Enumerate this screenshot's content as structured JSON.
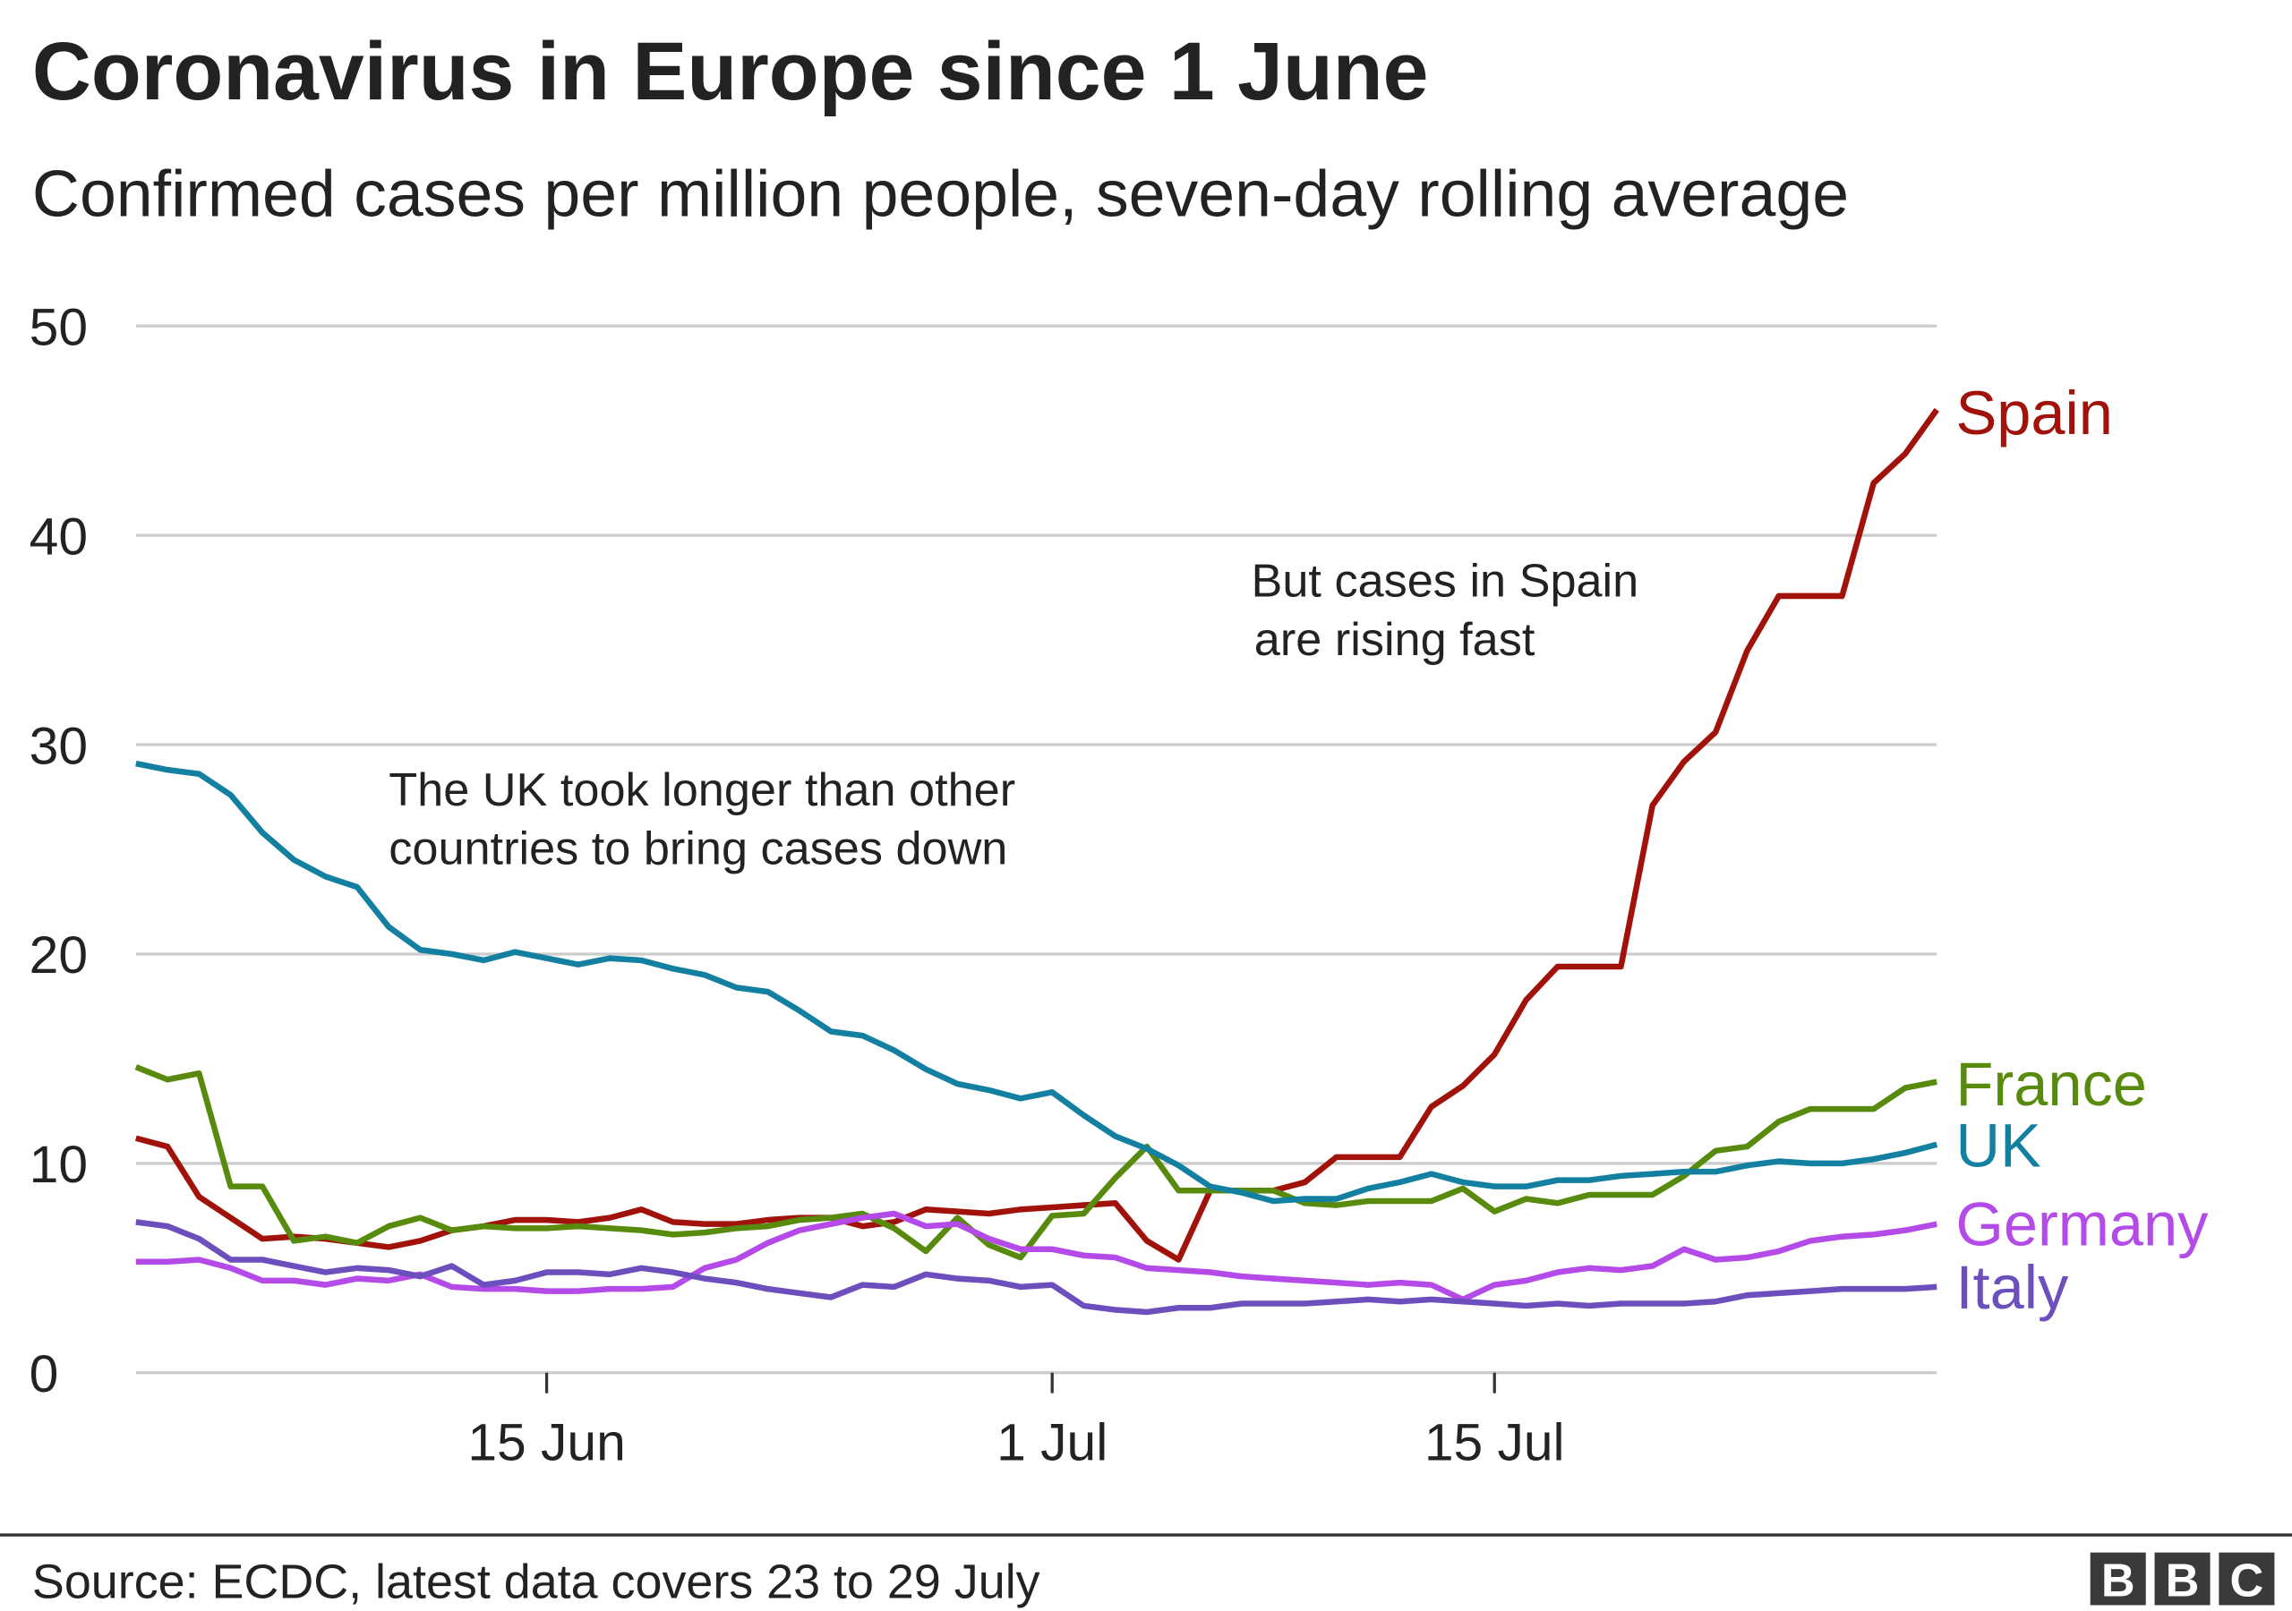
{
  "chart_data": {
    "type": "line",
    "title": "Coronavirus in Europe since 1 June",
    "subtitle": "Confirmed cases per million people, seven-day rolling average",
    "source": "Source: ECDC, latest data covers 23 to 29 July",
    "logo": [
      "B",
      "B",
      "C"
    ],
    "categories": [
      null,
      null,
      null,
      null,
      null,
      null,
      null,
      null,
      null,
      null,
      null,
      null,
      null,
      "15 Jun",
      null,
      null,
      null,
      null,
      null,
      null,
      null,
      null,
      null,
      null,
      null,
      null,
      null,
      null,
      null,
      "1 Jul",
      null,
      null,
      null,
      null,
      null,
      null,
      null,
      null,
      null,
      null,
      null,
      null,
      null,
      "15 Jul",
      null,
      null,
      null,
      null,
      null,
      null,
      null,
      null,
      null,
      null,
      null,
      null,
      null,
      null
    ],
    "ylim": [
      0,
      50
    ],
    "yticks": [
      0,
      10,
      20,
      30,
      40,
      50
    ],
    "grid": true,
    "annotations": [
      {
        "lines": [
          "The UK took longer than other",
          "countries to bring cases down"
        ]
      },
      {
        "lines": [
          "But cases in Spain",
          "are rising fast"
        ]
      }
    ],
    "series": [
      {
        "name": "Spain",
        "color": "#a0120a",
        "values": [
          11.2,
          10.8,
          8.4,
          7.4,
          6.4,
          6.5,
          6.4,
          6.2,
          6.0,
          6.3,
          6.8,
          7.0,
          7.3,
          7.3,
          7.2,
          7.4,
          7.8,
          7.2,
          7.1,
          7.1,
          7.3,
          7.4,
          7.4,
          7.0,
          7.2,
          7.8,
          7.7,
          7.6,
          7.8,
          7.9,
          8.0,
          8.1,
          6.3,
          5.4,
          8.7,
          8.7,
          8.7,
          9.1,
          10.3,
          10.3,
          10.3,
          12.7,
          13.7,
          15.2,
          17.8,
          19.4,
          19.4,
          19.4,
          27.1,
          29.2,
          30.6,
          34.5,
          37.1,
          37.1,
          37.1,
          42.5,
          43.9,
          46.0
        ]
      },
      {
        "name": "France",
        "color": "#588a0e",
        "values": [
          14.6,
          14.0,
          14.3,
          8.9,
          8.9,
          6.3,
          6.5,
          6.2,
          7.0,
          7.4,
          6.8,
          7.0,
          6.9,
          6.9,
          7.0,
          6.9,
          6.8,
          6.6,
          6.7,
          6.9,
          7.0,
          7.3,
          7.4,
          7.6,
          6.9,
          5.8,
          7.4,
          6.1,
          5.5,
          7.5,
          7.6,
          9.3,
          10.8,
          8.7,
          8.7,
          8.7,
          8.7,
          8.1,
          8.0,
          8.2,
          8.2,
          8.2,
          8.8,
          7.7,
          8.3,
          8.1,
          8.5,
          8.5,
          8.5,
          9.4,
          10.6,
          10.8,
          12.0,
          12.6,
          12.6,
          12.6,
          13.6,
          13.9
        ]
      },
      {
        "name": "UK",
        "color": "#1380a1",
        "values": [
          29.1,
          28.8,
          28.6,
          27.6,
          25.8,
          24.5,
          23.7,
          23.2,
          21.3,
          20.2,
          20.0,
          19.7,
          20.1,
          19.8,
          19.5,
          19.8,
          19.7,
          19.3,
          19.0,
          18.4,
          18.2,
          17.3,
          16.3,
          16.1,
          15.4,
          14.5,
          13.8,
          13.5,
          13.1,
          13.4,
          12.3,
          11.3,
          10.7,
          9.9,
          8.9,
          8.6,
          8.2,
          8.3,
          8.3,
          8.8,
          9.1,
          9.5,
          9.1,
          8.9,
          8.9,
          9.2,
          9.2,
          9.4,
          9.5,
          9.6,
          9.6,
          9.9,
          10.1,
          10.0,
          10.0,
          10.2,
          10.5,
          10.9
        ]
      },
      {
        "name": "Germany",
        "color": "#b44ae8",
        "values": [
          5.3,
          5.3,
          5.4,
          5.0,
          4.4,
          4.4,
          4.2,
          4.5,
          4.4,
          4.7,
          4.1,
          4.0,
          4.0,
          3.9,
          3.9,
          4.0,
          4.0,
          4.1,
          5.0,
          5.4,
          6.2,
          6.8,
          7.1,
          7.4,
          7.6,
          7.0,
          7.1,
          6.4,
          5.9,
          5.9,
          5.6,
          5.5,
          5.0,
          4.9,
          4.8,
          4.6,
          4.5,
          4.4,
          4.3,
          4.2,
          4.3,
          4.2,
          3.5,
          4.2,
          4.4,
          4.8,
          5.0,
          4.9,
          5.1,
          5.9,
          5.4,
          5.5,
          5.8,
          6.3,
          6.5,
          6.6,
          6.8,
          7.1
        ]
      },
      {
        "name": "Italy",
        "color": "#6c4fbd",
        "values": [
          7.2,
          7.0,
          6.4,
          5.4,
          5.4,
          5.1,
          4.8,
          5.0,
          4.9,
          4.6,
          5.1,
          4.2,
          4.4,
          4.8,
          4.8,
          4.7,
          5.0,
          4.8,
          4.5,
          4.3,
          4.0,
          3.8,
          3.6,
          4.2,
          4.1,
          4.7,
          4.5,
          4.4,
          4.1,
          4.2,
          3.2,
          3.0,
          2.9,
          3.1,
          3.1,
          3.3,
          3.3,
          3.3,
          3.4,
          3.5,
          3.4,
          3.5,
          3.4,
          3.3,
          3.2,
          3.3,
          3.2,
          3.3,
          3.3,
          3.3,
          3.4,
          3.7,
          3.8,
          3.9,
          4.0,
          4.0,
          4.0,
          4.1
        ]
      }
    ]
  }
}
